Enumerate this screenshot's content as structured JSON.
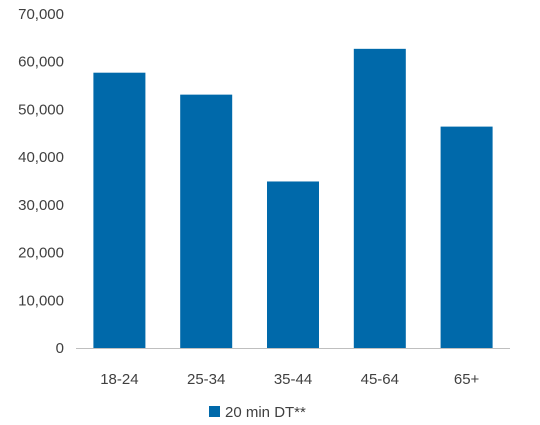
{
  "chart_data": {
    "type": "bar",
    "title": "",
    "xlabel": "",
    "ylabel": "",
    "categories": [
      "18-24",
      "25-34",
      "35-44",
      "45-64",
      "65+"
    ],
    "series": [
      {
        "name": "20 min DT**",
        "values": [
          57700,
          53100,
          34900,
          62700,
          46400
        ]
      }
    ],
    "ylim": [
      0,
      70000
    ],
    "y_ticks": [
      "0",
      "10,000",
      "20,000",
      "30,000",
      "40,000",
      "50,000",
      "60,000",
      "70,000"
    ],
    "y_tick_values": [
      0,
      10000,
      20000,
      30000,
      40000,
      50000,
      60000,
      70000
    ],
    "grid": false,
    "legend_position": "bottom",
    "colors": {
      "bar": "#0069AA",
      "axis": "#BFBFBF",
      "text": "#404040"
    }
  }
}
